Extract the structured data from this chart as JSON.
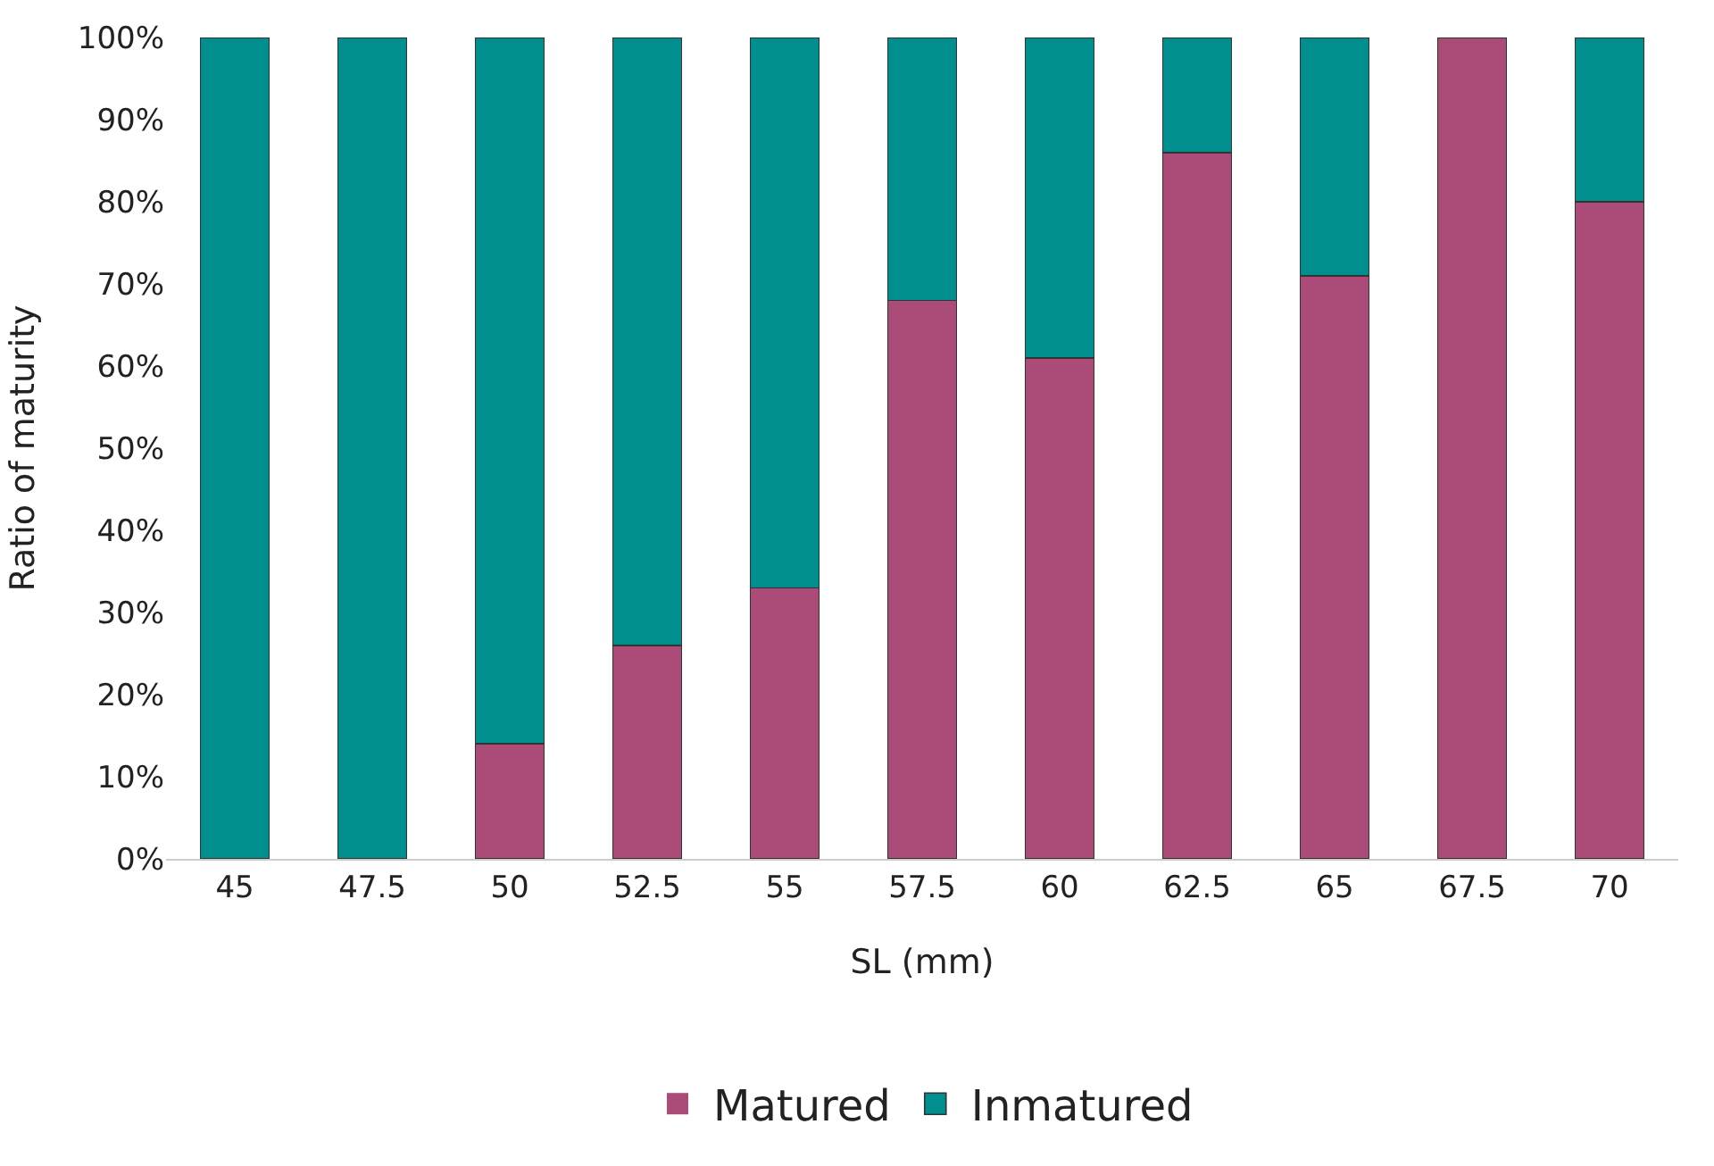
{
  "chart_data": {
    "type": "bar",
    "stacked": true,
    "xlabel": "SL (mm)",
    "ylabel": "Ratio of maturity",
    "categories": [
      "45",
      "47.5",
      "50",
      "52.5",
      "55",
      "57.5",
      "60",
      "62.5",
      "65",
      "67.5",
      "70"
    ],
    "series": [
      {
        "name": "Matured",
        "color": "#ab4b78",
        "values": [
          0,
          0,
          14,
          26,
          33,
          68,
          61,
          86,
          71,
          100,
          80
        ]
      },
      {
        "name": "Inmatured",
        "color": "#008e8e",
        "values": [
          100,
          100,
          86,
          74,
          67,
          32,
          39,
          14,
          29,
          0,
          20
        ]
      }
    ],
    "ylim": [
      0,
      100
    ],
    "yticks": [
      {
        "value": 0,
        "label": "0%"
      },
      {
        "value": 10,
        "label": "10%"
      },
      {
        "value": 20,
        "label": "20%"
      },
      {
        "value": 30,
        "label": "30%"
      },
      {
        "value": 40,
        "label": "40%"
      },
      {
        "value": 50,
        "label": "50%"
      },
      {
        "value": 60,
        "label": "60%"
      },
      {
        "value": 70,
        "label": "70%"
      },
      {
        "value": 80,
        "label": "80%"
      },
      {
        "value": 90,
        "label": "90%"
      },
      {
        "value": 100,
        "label": "100%"
      }
    ],
    "grid": false,
    "legend": "bottom"
  }
}
